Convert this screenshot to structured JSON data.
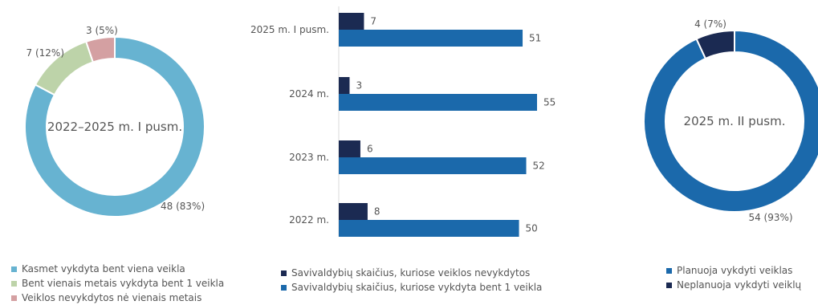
{
  "colors": {
    "light_blue": "#67b3d1",
    "light_green": "#bdd3a9",
    "pink": "#d4a0a2",
    "dark_blue": "#1b2a52",
    "blue": "#1b69ab",
    "text": "#555555"
  },
  "chart_data": [
    {
      "type": "pie",
      "variant": "donut",
      "center_label": "2022–2025 m. I pusm.",
      "slices": [
        {
          "name": "Kasmet vykdyta bent viena veikla",
          "value": 48,
          "label": "48 (83%)",
          "color": "#67b3d1"
        },
        {
          "name": "Bent vienais metais vykdyta bent 1 veikla",
          "value": 7,
          "label": "7 (12%)",
          "color": "#bdd3a9"
        },
        {
          "name": "Veiklos nevykdytos nė vienais metais",
          "value": 3,
          "label": "3 (5%)",
          "color": "#d4a0a2"
        }
      ],
      "legend_position": "bottom"
    },
    {
      "type": "bar",
      "orientation": "horizontal",
      "categories": [
        "2025 m. I pusm.",
        "2024 m.",
        "2023 m.",
        "2022 m."
      ],
      "series": [
        {
          "name": "Savivaldybių skaičius, kuriose veiklos nevykdytos",
          "values": [
            7,
            3,
            6,
            8
          ],
          "color": "#1b2a52"
        },
        {
          "name": "Savivaldybių skaičius, kuriose vykdyta bent 1 veikla",
          "values": [
            51,
            55,
            52,
            50
          ],
          "color": "#1b69ab"
        }
      ],
      "xlim": [
        0,
        60
      ],
      "grid": false,
      "legend_position": "bottom"
    },
    {
      "type": "pie",
      "variant": "donut",
      "center_label": "2025 m. II pusm.",
      "slices": [
        {
          "name": "Planuoja vykdyti veiklas",
          "value": 54,
          "label": "54 (93%)",
          "color": "#1b69ab"
        },
        {
          "name": "Neplanuoja vykdyti veiklų",
          "value": 4,
          "label": "4 (7%)",
          "color": "#1b2a52"
        }
      ],
      "legend_position": "bottom"
    }
  ]
}
